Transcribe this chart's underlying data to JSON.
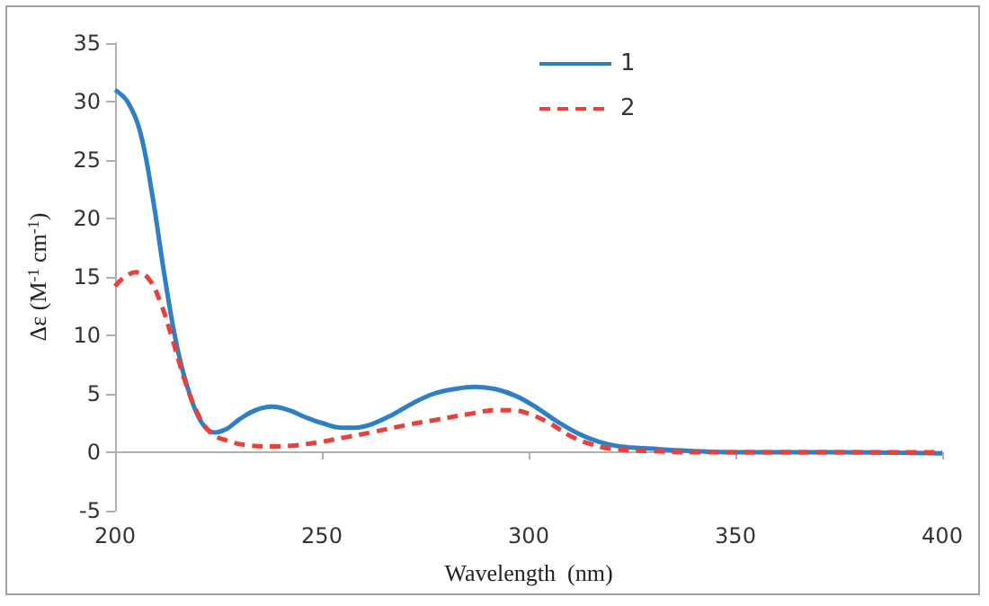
{
  "chart_data": {
    "type": "line",
    "xlabel": "Wavelength  (nm)",
    "ylabel": "Δε (M$^{-1}$ cm$^{-1}$)",
    "xlim": [
      200,
      400
    ],
    "xticks": [
      200,
      250,
      300,
      350,
      400
    ],
    "ylim": [
      -5,
      35
    ],
    "yticks": [
      -5,
      0,
      5,
      10,
      15,
      20,
      25,
      30,
      35
    ],
    "legend": "top",
    "marker": "none",
    "series": [
      {
        "name": "1",
        "color": "#2e7fc4",
        "line_style": "solid",
        "x": [
          200,
          203,
          206,
          209,
          212,
          215,
          218,
          221,
          224,
          227,
          230,
          234,
          238,
          242,
          246,
          250,
          255,
          258,
          262,
          267,
          272,
          277,
          282,
          287,
          292,
          297,
          302,
          307,
          312,
          317,
          322,
          330,
          340,
          350,
          375,
          400
        ],
        "values": [
          31,
          30,
          27.5,
          22,
          15,
          9,
          5,
          2.5,
          1.7,
          2,
          2.8,
          3.6,
          3.9,
          3.6,
          3,
          2.5,
          2.1,
          2.1,
          2.4,
          3.2,
          4.2,
          5,
          5.4,
          5.6,
          5.4,
          4.8,
          3.8,
          2.6,
          1.6,
          0.9,
          0.5,
          0.3,
          0.1,
          0,
          0,
          -0.1
        ]
      },
      {
        "name": "2",
        "color": "#e8413c",
        "line_style": "dashed",
        "x": [
          200,
          202,
          205,
          208,
          211,
          214,
          217,
          220,
          223,
          227,
          232,
          238,
          244,
          250,
          256,
          262,
          270,
          278,
          286,
          292,
          296,
          300,
          305,
          310,
          315,
          320,
          330,
          340,
          400
        ],
        "values": [
          14.2,
          14.9,
          15.4,
          14.9,
          12.8,
          9.5,
          6,
          3.3,
          1.7,
          1,
          0.6,
          0.5,
          0.6,
          0.9,
          1.3,
          1.7,
          2.3,
          2.8,
          3.3,
          3.6,
          3.6,
          3.3,
          2.5,
          1.4,
          0.7,
          0.3,
          0.1,
          0,
          0
        ]
      }
    ]
  }
}
